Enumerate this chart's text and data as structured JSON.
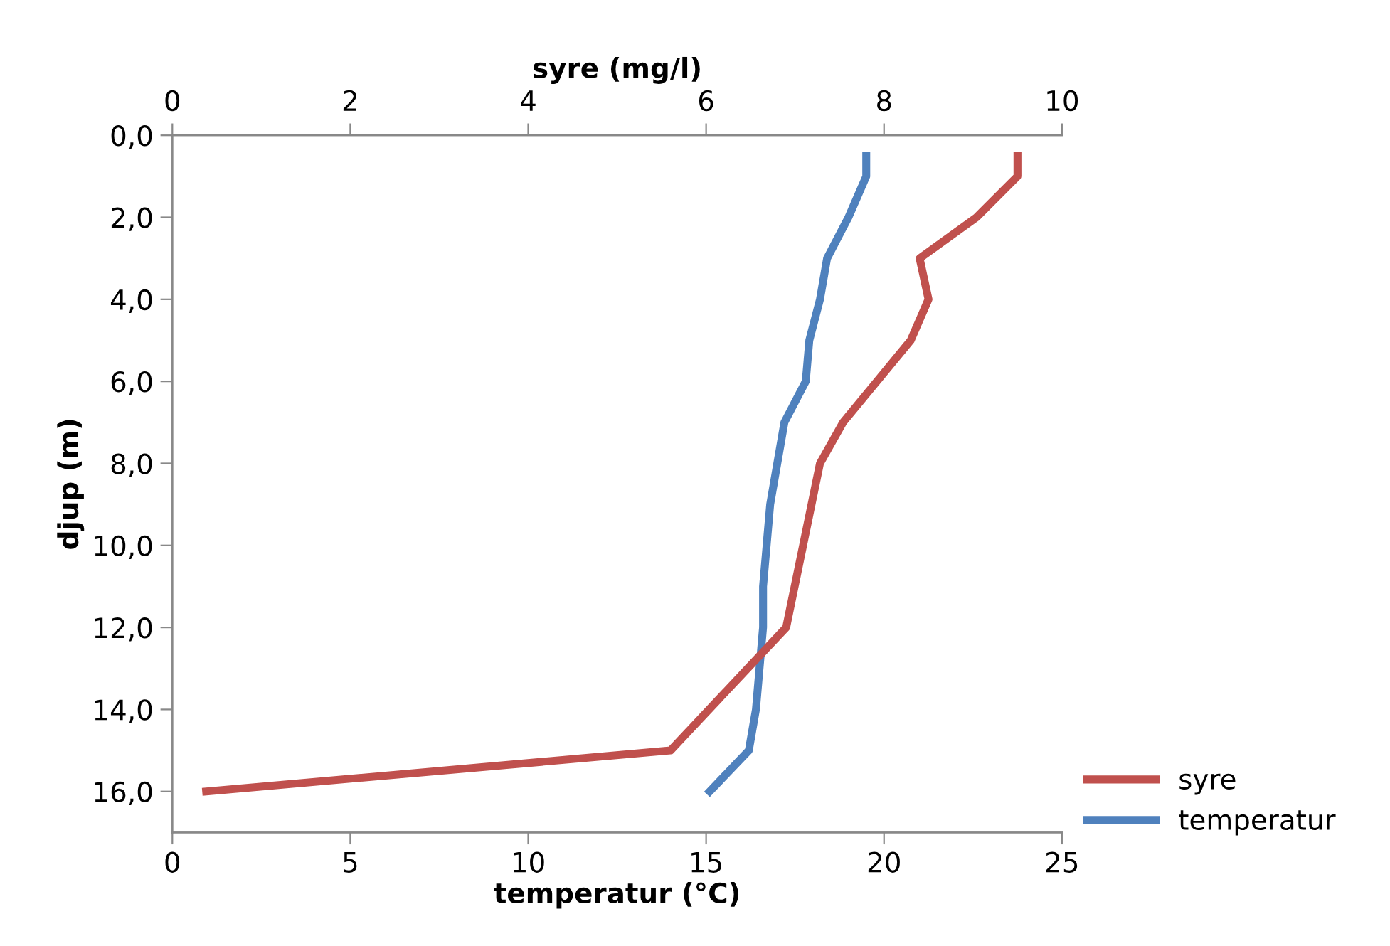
{
  "chart_data": {
    "type": "line",
    "xlabel": "temperatur (°C)",
    "x2label": "syre (mg/l)",
    "ylabel": "djup (m)",
    "xlim": [
      0,
      25
    ],
    "xticks": [
      0,
      5,
      10,
      15,
      20,
      25
    ],
    "x2lim": [
      0,
      10
    ],
    "x2ticks": [
      0,
      2,
      4,
      6,
      8,
      10
    ],
    "ylim": [
      17,
      0
    ],
    "yticks": [
      {
        "value": 0,
        "label": "0,0"
      },
      {
        "value": 2,
        "label": "2,0"
      },
      {
        "value": 4,
        "label": "4,0"
      },
      {
        "value": 6,
        "label": "6,0"
      },
      {
        "value": 8,
        "label": "8,0"
      },
      {
        "value": 10,
        "label": "10,0"
      },
      {
        "value": 12,
        "label": "12,0"
      },
      {
        "value": 14,
        "label": "14,0"
      },
      {
        "value": 16,
        "label": "16,0"
      }
    ],
    "grid": false,
    "legend": "bottom right",
    "marker": "none",
    "line_style": "solid",
    "series": [
      {
        "name": "syre",
        "color": "#c0504d",
        "axis": "x2",
        "x": [
          9.5,
          9.5,
          9.04,
          8.4,
          8.5,
          8.3,
          7.54,
          7.28,
          6.9,
          5.6,
          0.38
        ],
        "values": [
          0.5,
          1,
          2,
          3,
          4,
          5,
          7,
          8,
          12,
          15,
          16
        ]
      },
      {
        "name": "temperatur",
        "color": "#4f81bd",
        "x": [
          19.5,
          19.5,
          19.0,
          18.4,
          18.2,
          17.9,
          17.8,
          17.2,
          16.8,
          16.6,
          16.6,
          16.5,
          16.4,
          16.2,
          15.1
        ],
        "values": [
          0.5,
          1,
          2,
          3,
          4,
          5,
          6,
          7,
          9,
          11,
          12,
          13,
          14,
          15,
          16
        ]
      }
    ]
  }
}
